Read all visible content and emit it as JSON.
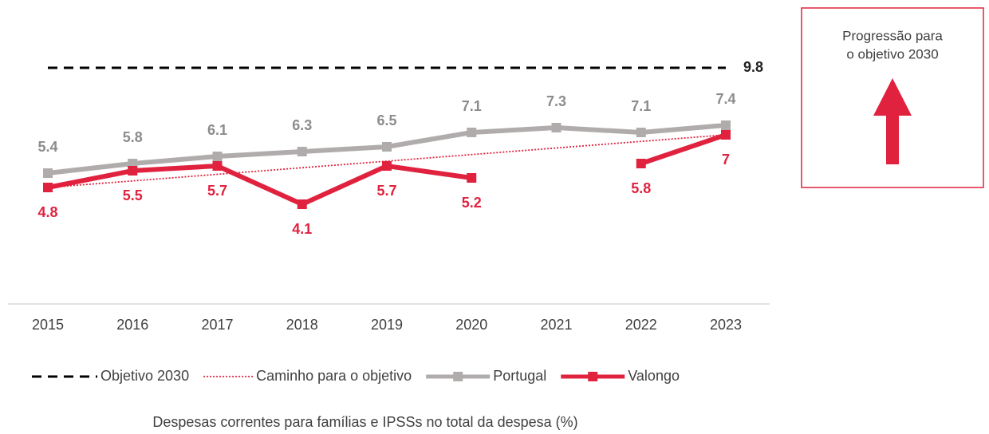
{
  "chart_data": {
    "type": "line",
    "caption": "Despesas correntes para famílias e IPSSs no total da despesa (%)",
    "x": [
      2015,
      2016,
      2017,
      2018,
      2019,
      2020,
      2021,
      2022,
      2023
    ],
    "xlim": [
      2015,
      2023
    ],
    "xticks": [
      2015,
      2016,
      2017,
      2018,
      2019,
      2020,
      2021,
      2022,
      2023
    ],
    "ylim": [
      0,
      10
    ],
    "series": [
      {
        "name": "Objetivo 2030",
        "color": "#000000",
        "style": "dashed",
        "x": [
          2015,
          2023
        ],
        "values": [
          9.8,
          9.8
        ],
        "value_labels": [
          null,
          "9.8"
        ]
      },
      {
        "name": "Caminho para o objetivo",
        "color": "#e0223f",
        "style": "dotted",
        "x": [
          2015,
          2023
        ],
        "values": [
          4.8,
          7.0
        ]
      },
      {
        "name": "Portugal",
        "color": "#b1acac",
        "style": "solid",
        "values": [
          5.4,
          5.8,
          6.1,
          6.3,
          6.5,
          7.1,
          7.3,
          7.1,
          7.4
        ]
      },
      {
        "name": "Valongo",
        "color": "#e0223f",
        "style": "solid",
        "values": [
          4.8,
          5.5,
          5.7,
          4.1,
          5.7,
          5.2,
          null,
          5.8,
          7.0
        ]
      }
    ],
    "box": {
      "lines": [
        "Progressão para",
        "o objetivo 2030"
      ],
      "color": "#e0223f"
    }
  }
}
